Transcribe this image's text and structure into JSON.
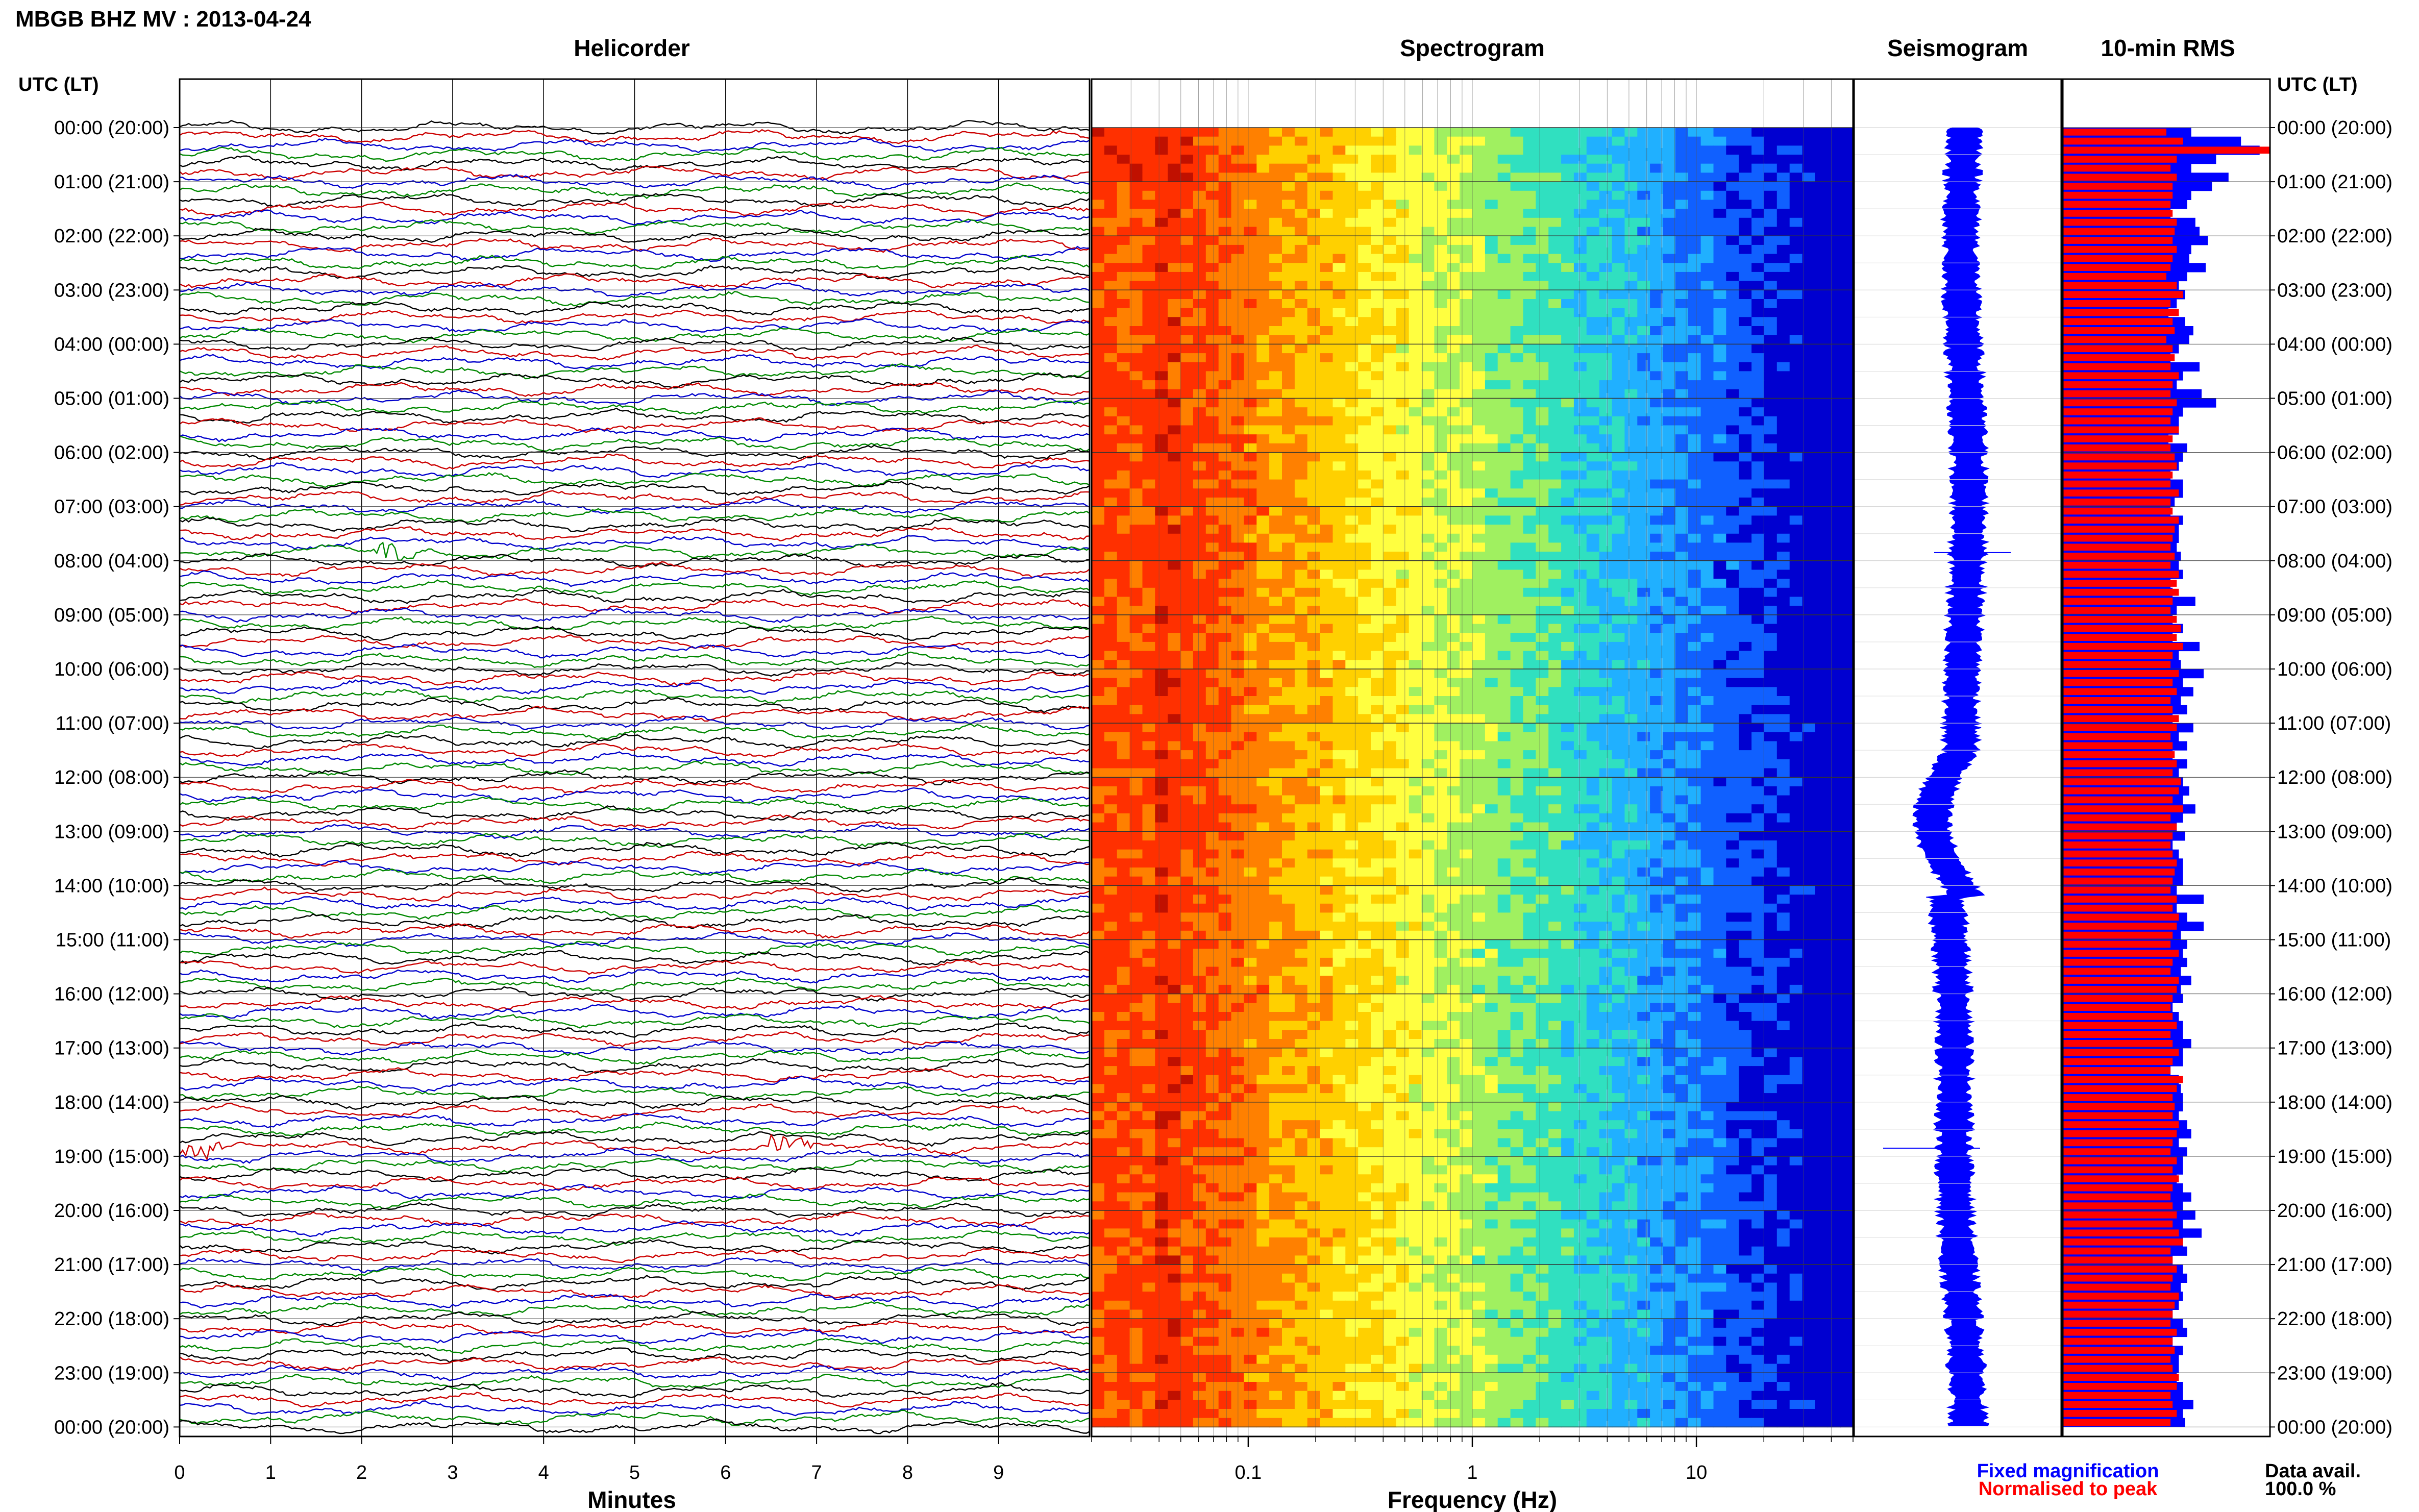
{
  "title": "MBGB BHZ MV : 2013-04-24",
  "time_axis_label": "UTC (LT)",
  "time_labels": [
    "00:00 (20:00)",
    "01:00 (21:00)",
    "02:00 (22:00)",
    "03:00 (23:00)",
    "04:00 (00:00)",
    "05:00 (01:00)",
    "06:00 (02:00)",
    "07:00 (03:00)",
    "08:00 (04:00)",
    "09:00 (05:00)",
    "10:00 (06:00)",
    "11:00 (07:00)",
    "12:00 (08:00)",
    "13:00 (09:00)",
    "14:00 (10:00)",
    "15:00 (11:00)",
    "16:00 (12:00)",
    "17:00 (13:00)",
    "18:00 (14:00)",
    "19:00 (15:00)",
    "20:00 (16:00)",
    "21:00 (17:00)",
    "22:00 (18:00)",
    "23:00 (19:00)",
    "00:00 (20:00)"
  ],
  "colors": {
    "trace": [
      "#000000",
      "#cc0000",
      "#0000cc",
      "#008800"
    ],
    "fixed": "#0000ff",
    "normalised": "#ff0000"
  },
  "chart_data": [
    {
      "type": "line",
      "title": "Helicorder",
      "xlabel": "Minutes",
      "xticks": [
        "0",
        "1",
        "2",
        "3",
        "4",
        "5",
        "6",
        "7",
        "8",
        "9"
      ],
      "xlim": [
        0,
        10
      ],
      "rows_per_hour": 6,
      "events": [
        {
          "time": "07:50",
          "minute": 2.4
        },
        {
          "time": "18:50",
          "minute": 0.2
        },
        {
          "time": "18:50",
          "minute": 6.7
        }
      ]
    },
    {
      "type": "heatmap",
      "title": "Spectrogram",
      "xlabel": "Frequency (Hz)",
      "xscale": "log",
      "xlim": [
        0.02,
        50
      ],
      "xticks": [
        "0.1",
        "1",
        "10"
      ],
      "colormap": [
        "#c01000",
        "#ff3000",
        "#ff8000",
        "#ffd000",
        "#ffff40",
        "#a0f060",
        "#30e0c0",
        "#20b0ff",
        "#1060ff",
        "#0000d0"
      ]
    },
    {
      "type": "line",
      "title": "Seismogram",
      "legend_label": "Fixed magnification"
    },
    {
      "type": "bar",
      "title": "10-min RMS",
      "series": [
        {
          "name": "Fixed magnification",
          "values": [
            0.62,
            0.86,
            0.95,
            0.74,
            0.62,
            0.8,
            0.72,
            0.62,
            0.6,
            0.52,
            0.64,
            0.66,
            0.7,
            0.62,
            0.61,
            0.69,
            0.6,
            0.56,
            0.59,
            0.55,
            0.51,
            0.59,
            0.63,
            0.61,
            0.56,
            0.52,
            0.66,
            0.58,
            0.55,
            0.67,
            0.74,
            0.58,
            0.56,
            0.56,
            0.51,
            0.6,
            0.58,
            0.56,
            0.52,
            0.58,
            0.58,
            0.54,
            0.52,
            0.58,
            0.56,
            0.56,
            0.55,
            0.57,
            0.56,
            0.58,
            0.52,
            0.53,
            0.64,
            0.55,
            0.53,
            0.58,
            0.53,
            0.66,
            0.56,
            0.57,
            0.68,
            0.58,
            0.63,
            0.57,
            0.6,
            0.53,
            0.63,
            0.56,
            0.6,
            0.53,
            0.6,
            0.56,
            0.58,
            0.61,
            0.58,
            0.64,
            0.58,
            0.55,
            0.59,
            0.53,
            0.56,
            0.58,
            0.58,
            0.58,
            0.55,
            0.68,
            0.55,
            0.6,
            0.68,
            0.57,
            0.6,
            0.58,
            0.6,
            0.57,
            0.62,
            0.57,
            0.58,
            0.53,
            0.56,
            0.58,
            0.58,
            0.62,
            0.58,
            0.58,
            0.52,
            0.56,
            0.57,
            0.58,
            0.58,
            0.56,
            0.6,
            0.62,
            0.56,
            0.6,
            0.58,
            0.58,
            0.55,
            0.58,
            0.62,
            0.58,
            0.64,
            0.58,
            0.67,
            0.58,
            0.6,
            0.53,
            0.58,
            0.6,
            0.57,
            0.58,
            0.56,
            0.53,
            0.58,
            0.6,
            0.53,
            0.58,
            0.56,
            0.56,
            0.55,
            0.58,
            0.58,
            0.63,
            0.58,
            0.59
          ]
        },
        {
          "name": "Normalised to peak",
          "values": [
            0.5,
            0.58,
            1.0,
            0.55,
            0.52,
            0.55,
            0.53,
            0.53,
            0.52,
            0.53,
            0.55,
            0.54,
            0.53,
            0.55,
            0.53,
            0.52,
            0.5,
            0.55,
            0.58,
            0.52,
            0.56,
            0.53,
            0.54,
            0.5,
            0.53,
            0.54,
            0.52,
            0.56,
            0.53,
            0.52,
            0.55,
            0.53,
            0.52,
            0.56,
            0.53,
            0.52,
            0.54,
            0.55,
            0.53,
            0.52,
            0.56,
            0.52,
            0.53,
            0.56,
            0.54,
            0.53,
            0.52,
            0.54,
            0.52,
            0.56,
            0.55,
            0.56,
            0.53,
            0.52,
            0.55,
            0.57,
            0.55,
            0.58,
            0.53,
            0.52,
            0.56,
            0.53,
            0.55,
            0.52,
            0.53,
            0.56,
            0.55,
            0.52,
            0.53,
            0.54,
            0.55,
            0.53,
            0.57,
            0.56,
            0.53,
            0.58,
            0.52,
            0.55,
            0.53,
            0.52,
            0.53,
            0.55,
            0.54,
            0.53,
            0.52,
            0.55,
            0.53,
            0.56,
            0.55,
            0.53,
            0.52,
            0.56,
            0.53,
            0.52,
            0.56,
            0.55,
            0.53,
            0.52,
            0.53,
            0.55,
            0.52,
            0.53,
            0.56,
            0.53,
            0.52,
            0.58,
            0.55,
            0.53,
            0.54,
            0.53,
            0.56,
            0.55,
            0.53,
            0.52,
            0.55,
            0.53,
            0.56,
            0.53,
            0.52,
            0.53,
            0.55,
            0.53,
            0.56,
            0.58,
            0.52,
            0.53,
            0.55,
            0.53,
            0.52,
            0.56,
            0.54,
            0.53,
            0.52,
            0.55,
            0.53,
            0.54,
            0.52,
            0.53,
            0.56,
            0.55,
            0.52,
            0.53,
            0.55,
            0.52
          ]
        }
      ]
    }
  ],
  "legend": {
    "fixed": "Fixed magnification",
    "normalised": "Normalised to peak"
  },
  "data_avail": {
    "label": "Data avail.",
    "value": "100.0 %"
  }
}
